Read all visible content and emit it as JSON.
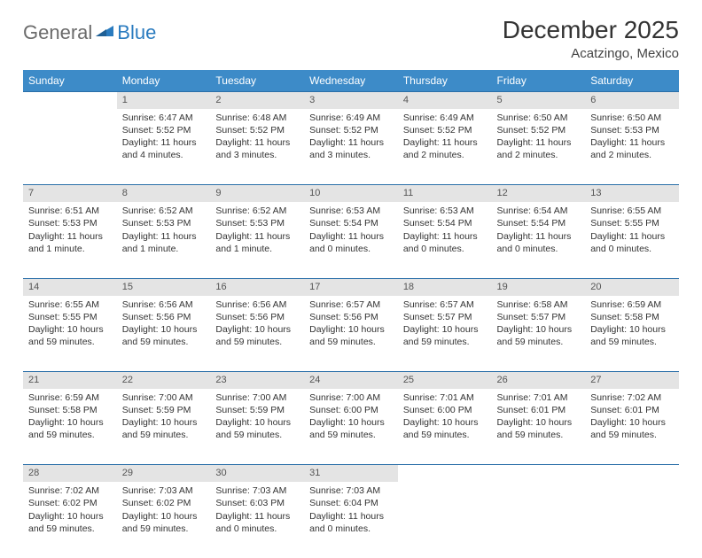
{
  "logo": {
    "general": "General",
    "blue": "Blue"
  },
  "title": "December 2025",
  "location": "Acatzingo, Mexico",
  "colors": {
    "header_bg": "#3d8bc8",
    "header_border": "#2a6fa8",
    "daynum_bg": "#e4e4e4",
    "text": "#333333",
    "logo_gray": "#6b6b6b",
    "logo_blue": "#2a7bbf"
  },
  "day_headers": [
    "Sunday",
    "Monday",
    "Tuesday",
    "Wednesday",
    "Thursday",
    "Friday",
    "Saturday"
  ],
  "weeks": [
    {
      "nums": [
        "",
        "1",
        "2",
        "3",
        "4",
        "5",
        "6"
      ],
      "cells": [
        [],
        [
          "Sunrise: 6:47 AM",
          "Sunset: 5:52 PM",
          "Daylight: 11 hours",
          "and 4 minutes."
        ],
        [
          "Sunrise: 6:48 AM",
          "Sunset: 5:52 PM",
          "Daylight: 11 hours",
          "and 3 minutes."
        ],
        [
          "Sunrise: 6:49 AM",
          "Sunset: 5:52 PM",
          "Daylight: 11 hours",
          "and 3 minutes."
        ],
        [
          "Sunrise: 6:49 AM",
          "Sunset: 5:52 PM",
          "Daylight: 11 hours",
          "and 2 minutes."
        ],
        [
          "Sunrise: 6:50 AM",
          "Sunset: 5:52 PM",
          "Daylight: 11 hours",
          "and 2 minutes."
        ],
        [
          "Sunrise: 6:50 AM",
          "Sunset: 5:53 PM",
          "Daylight: 11 hours",
          "and 2 minutes."
        ]
      ]
    },
    {
      "nums": [
        "7",
        "8",
        "9",
        "10",
        "11",
        "12",
        "13"
      ],
      "cells": [
        [
          "Sunrise: 6:51 AM",
          "Sunset: 5:53 PM",
          "Daylight: 11 hours",
          "and 1 minute."
        ],
        [
          "Sunrise: 6:52 AM",
          "Sunset: 5:53 PM",
          "Daylight: 11 hours",
          "and 1 minute."
        ],
        [
          "Sunrise: 6:52 AM",
          "Sunset: 5:53 PM",
          "Daylight: 11 hours",
          "and 1 minute."
        ],
        [
          "Sunrise: 6:53 AM",
          "Sunset: 5:54 PM",
          "Daylight: 11 hours",
          "and 0 minutes."
        ],
        [
          "Sunrise: 6:53 AM",
          "Sunset: 5:54 PM",
          "Daylight: 11 hours",
          "and 0 minutes."
        ],
        [
          "Sunrise: 6:54 AM",
          "Sunset: 5:54 PM",
          "Daylight: 11 hours",
          "and 0 minutes."
        ],
        [
          "Sunrise: 6:55 AM",
          "Sunset: 5:55 PM",
          "Daylight: 11 hours",
          "and 0 minutes."
        ]
      ]
    },
    {
      "nums": [
        "14",
        "15",
        "16",
        "17",
        "18",
        "19",
        "20"
      ],
      "cells": [
        [
          "Sunrise: 6:55 AM",
          "Sunset: 5:55 PM",
          "Daylight: 10 hours",
          "and 59 minutes."
        ],
        [
          "Sunrise: 6:56 AM",
          "Sunset: 5:56 PM",
          "Daylight: 10 hours",
          "and 59 minutes."
        ],
        [
          "Sunrise: 6:56 AM",
          "Sunset: 5:56 PM",
          "Daylight: 10 hours",
          "and 59 minutes."
        ],
        [
          "Sunrise: 6:57 AM",
          "Sunset: 5:56 PM",
          "Daylight: 10 hours",
          "and 59 minutes."
        ],
        [
          "Sunrise: 6:57 AM",
          "Sunset: 5:57 PM",
          "Daylight: 10 hours",
          "and 59 minutes."
        ],
        [
          "Sunrise: 6:58 AM",
          "Sunset: 5:57 PM",
          "Daylight: 10 hours",
          "and 59 minutes."
        ],
        [
          "Sunrise: 6:59 AM",
          "Sunset: 5:58 PM",
          "Daylight: 10 hours",
          "and 59 minutes."
        ]
      ]
    },
    {
      "nums": [
        "21",
        "22",
        "23",
        "24",
        "25",
        "26",
        "27"
      ],
      "cells": [
        [
          "Sunrise: 6:59 AM",
          "Sunset: 5:58 PM",
          "Daylight: 10 hours",
          "and 59 minutes."
        ],
        [
          "Sunrise: 7:00 AM",
          "Sunset: 5:59 PM",
          "Daylight: 10 hours",
          "and 59 minutes."
        ],
        [
          "Sunrise: 7:00 AM",
          "Sunset: 5:59 PM",
          "Daylight: 10 hours",
          "and 59 minutes."
        ],
        [
          "Sunrise: 7:00 AM",
          "Sunset: 6:00 PM",
          "Daylight: 10 hours",
          "and 59 minutes."
        ],
        [
          "Sunrise: 7:01 AM",
          "Sunset: 6:00 PM",
          "Daylight: 10 hours",
          "and 59 minutes."
        ],
        [
          "Sunrise: 7:01 AM",
          "Sunset: 6:01 PM",
          "Daylight: 10 hours",
          "and 59 minutes."
        ],
        [
          "Sunrise: 7:02 AM",
          "Sunset: 6:01 PM",
          "Daylight: 10 hours",
          "and 59 minutes."
        ]
      ]
    },
    {
      "nums": [
        "28",
        "29",
        "30",
        "31",
        "",
        "",
        ""
      ],
      "cells": [
        [
          "Sunrise: 7:02 AM",
          "Sunset: 6:02 PM",
          "Daylight: 10 hours",
          "and 59 minutes."
        ],
        [
          "Sunrise: 7:03 AM",
          "Sunset: 6:02 PM",
          "Daylight: 10 hours",
          "and 59 minutes."
        ],
        [
          "Sunrise: 7:03 AM",
          "Sunset: 6:03 PM",
          "Daylight: 11 hours",
          "and 0 minutes."
        ],
        [
          "Sunrise: 7:03 AM",
          "Sunset: 6:04 PM",
          "Daylight: 11 hours",
          "and 0 minutes."
        ],
        [],
        [],
        []
      ]
    }
  ]
}
